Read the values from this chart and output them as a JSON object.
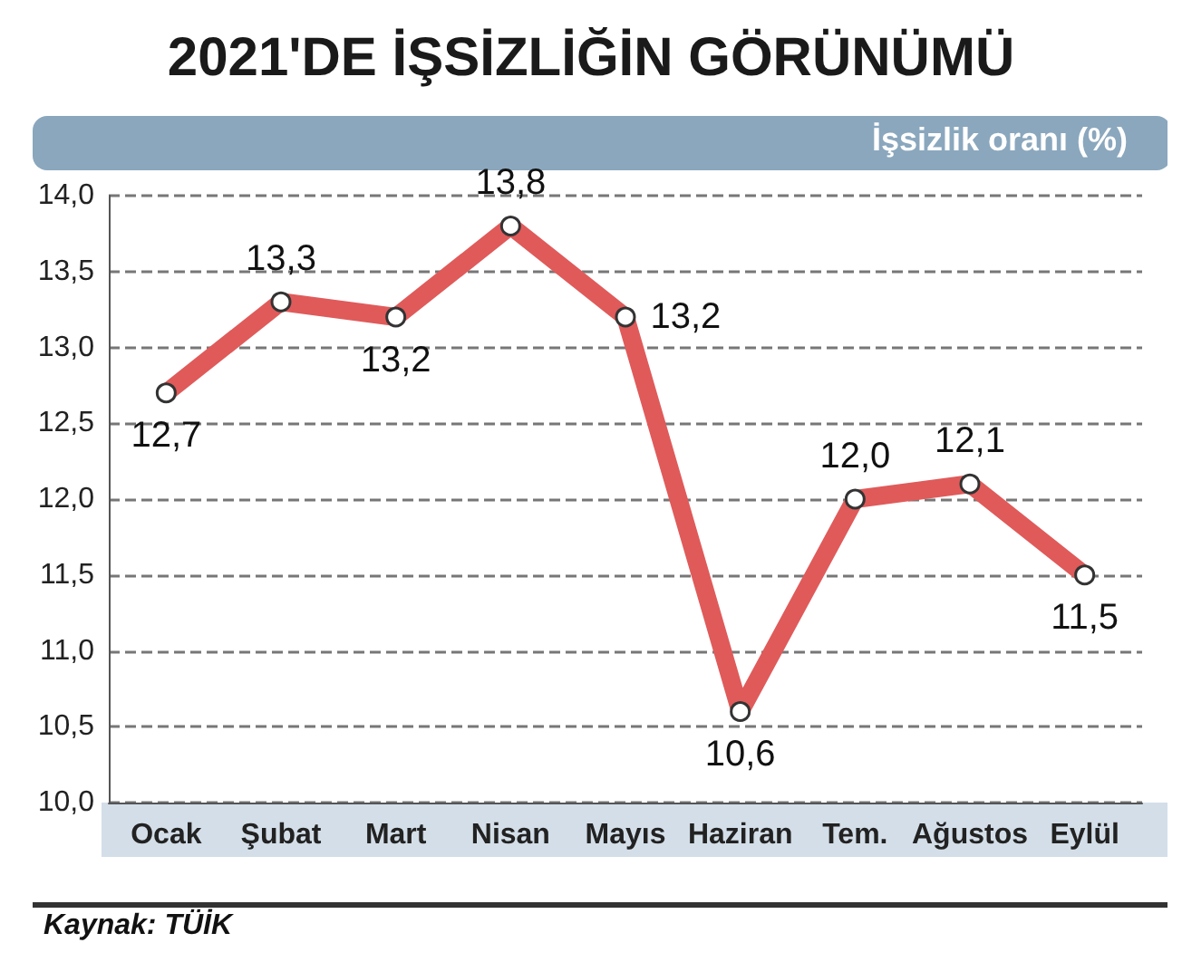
{
  "chart_data": {
    "type": "line",
    "title": "2021'DE İŞSİZLİĞİN GÖRÜNÜMÜ",
    "ylabel": "İşsizlik oranı (%)",
    "annotations": [
      "Kaynak: TÜİK"
    ],
    "categories": [
      "Ocak",
      "Şubat",
      "Mart",
      "Nisan",
      "Mayıs",
      "Haziran",
      "Tem.",
      "Ağustos",
      "Eylül"
    ],
    "series": [
      {
        "color": "#e05a5a",
        "values": [
          12.7,
          13.3,
          13.2,
          13.8,
          13.2,
          10.6,
          12.0,
          12.1,
          11.5
        ],
        "value_labels": [
          "12,7",
          "13,3",
          "13,2",
          "13,8",
          "13,2",
          "10,6",
          "12,0",
          "12,1",
          "11,5"
        ]
      }
    ],
    "ylim": [
      10,
      14
    ],
    "yticks": [
      {
        "value": 10,
        "label": "10,0"
      },
      {
        "value": 10.5,
        "label": "10,5"
      },
      {
        "value": 11,
        "label": "11,0"
      },
      {
        "value": 11.5,
        "label": "11,5"
      },
      {
        "value": 12,
        "label": "12,0"
      },
      {
        "value": 12.5,
        "label": "12,5"
      },
      {
        "value": 13,
        "label": "13,0"
      },
      {
        "value": 13.5,
        "label": "13,5"
      },
      {
        "value": 14,
        "label": "14,0"
      }
    ],
    "grid": "y",
    "marker": "circle",
    "line_style": "solid"
  }
}
